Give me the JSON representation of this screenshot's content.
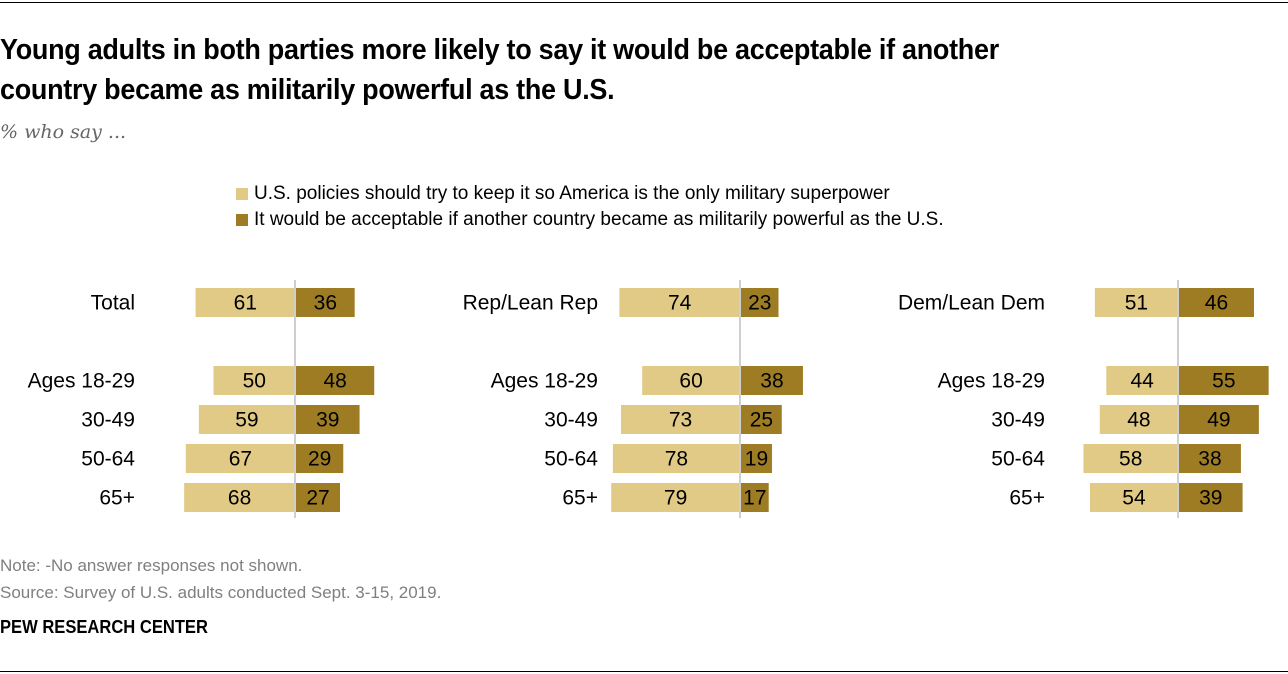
{
  "title": "Young adults in both parties more likely to say it would be acceptable if another country became as militarily powerful as the U.S.",
  "title_lines": [
    "Young adults in both parties more likely to say it would be acceptable if another",
    "country became as militarily powerful as the U.S."
  ],
  "subtitle": "% who say ...",
  "legend": [
    {
      "label": "U.S. policies should try to keep it so America is the only military superpower",
      "color": "#E1C986"
    },
    {
      "label": "It would be acceptable if another country became as militarily powerful as the U.S.",
      "color": "#9E7C23"
    }
  ],
  "note": "Note: -No answer responses not shown.",
  "source": "Source: Survey of U.S. adults conducted Sept. 3-15, 2019.",
  "brand": "PEW RESEARCH CENTER",
  "chart_data": [
    {
      "type": "bar",
      "orientation": "diverging-horizontal",
      "panel": "Total",
      "categories": [
        "Total",
        "Ages 18-29",
        "30-49",
        "50-64",
        "65+"
      ],
      "series": [
        {
          "name": "U.S. policies should try to keep it so America is the only military superpower",
          "values": [
            61,
            50,
            59,
            67,
            68
          ]
        },
        {
          "name": "It would be acceptable if another country became as militarily powerful as the U.S.",
          "values": [
            36,
            48,
            39,
            29,
            27
          ]
        }
      ]
    },
    {
      "type": "bar",
      "orientation": "diverging-horizontal",
      "panel": "Rep/Lean Rep",
      "categories": [
        "Rep/Lean Rep",
        "Ages 18-29",
        "30-49",
        "50-64",
        "65+"
      ],
      "series": [
        {
          "name": "U.S. policies should try to keep it so America is the only military superpower",
          "values": [
            74,
            60,
            73,
            78,
            79
          ]
        },
        {
          "name": "It would be acceptable if another country became as militarily powerful as the U.S.",
          "values": [
            23,
            38,
            25,
            19,
            17
          ]
        }
      ]
    },
    {
      "type": "bar",
      "orientation": "diverging-horizontal",
      "panel": "Dem/Lean Dem",
      "categories": [
        "Dem/Lean Dem",
        "Ages 18-29",
        "30-49",
        "50-64",
        "65+"
      ],
      "series": [
        {
          "name": "U.S. policies should try to keep it so America is the only military superpower",
          "values": [
            51,
            44,
            48,
            58,
            54
          ]
        },
        {
          "name": "It would be acceptable if another country became as militarily powerful as the U.S.",
          "values": [
            46,
            55,
            49,
            38,
            39
          ]
        }
      ]
    }
  ]
}
